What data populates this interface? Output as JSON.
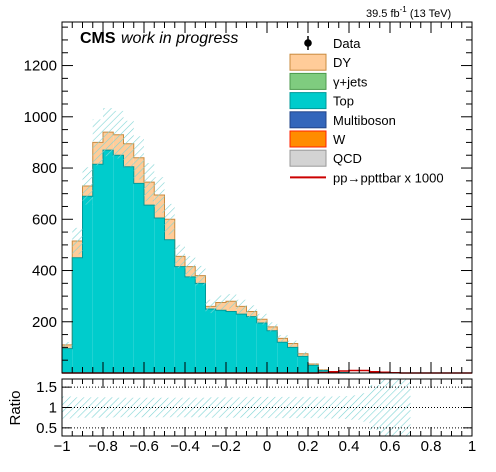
{
  "chart_data": {
    "type": "bar",
    "lumi_label": "39.5 fb",
    "lumi_exponent": "-1",
    "energy_label": "(13 TeV)",
    "experiment_label": "CMS",
    "status_label": "work in progress",
    "x": {
      "edges": [
        -1.0,
        -0.95,
        -0.9,
        -0.85,
        -0.8,
        -0.75,
        -0.7,
        -0.65,
        -0.6,
        -0.55,
        -0.5,
        -0.45,
        -0.4,
        -0.35,
        -0.3,
        -0.25,
        -0.2,
        -0.15,
        -0.1,
        -0.05,
        0.0,
        0.05,
        0.1,
        0.15,
        0.2,
        0.25,
        0.3,
        0.35,
        0.4,
        0.45,
        0.5,
        0.55,
        0.6,
        0.65,
        0.7,
        0.75,
        0.8,
        0.85,
        0.9,
        0.95,
        1.0
      ],
      "xlim": [
        -1,
        1
      ],
      "ticks": [
        -1,
        -0.8,
        -0.6,
        -0.4,
        -0.2,
        0,
        0.2,
        0.4,
        0.6,
        0.8,
        1
      ],
      "tick_labels": [
        "−1",
        "−0.8",
        "−0.6",
        "−0.4",
        "−0.2",
        "0",
        "0.2",
        "0.4",
        "0.6",
        "0.8",
        "1"
      ]
    },
    "main_panel": {
      "ylim": [
        0,
        1370
      ],
      "yticks": [
        200,
        400,
        600,
        800,
        1000,
        1200
      ],
      "ytick_labels": [
        "200",
        "400",
        "600",
        "800",
        "1000",
        "1200"
      ]
    },
    "ratio_panel": {
      "ylabel": "Ratio",
      "ylim": [
        0.3,
        1.7
      ],
      "yticks": [
        0.5,
        1,
        1.5
      ],
      "ytick_labels": [
        "0.5",
        "1",
        "1.5"
      ],
      "reference_lines": [
        0.5,
        1.0,
        1.5
      ],
      "band_half_width": [
        0.27,
        0.25,
        0.25,
        0.25,
        0.25,
        0.24,
        0.24,
        0.24,
        0.24,
        0.24,
        0.24,
        0.24,
        0.24,
        0.24,
        0.25,
        0.25,
        0.25,
        0.25,
        0.26,
        0.26,
        0.26,
        0.26,
        0.26,
        0.26,
        0.26,
        0.27,
        0.27,
        0.28,
        0.3,
        0.35,
        0.55,
        0.75,
        0.75,
        0.75,
        0.0,
        0.0,
        0.0,
        0.0,
        0.0,
        0.0
      ]
    },
    "legend": [
      {
        "label": "Data",
        "kind": "marker",
        "color": "#000000"
      },
      {
        "label": "DY",
        "kind": "box",
        "color": "#ffcc99",
        "edge": "#c98b3f"
      },
      {
        "label": "γ+jets",
        "kind": "box",
        "color": "#7fcc7f",
        "edge": "#4c9a4c"
      },
      {
        "label": "Top",
        "kind": "box",
        "color": "#00cccc",
        "edge": "#009999"
      },
      {
        "label": "Multiboson",
        "kind": "box",
        "color": "#3366bb",
        "edge": "#224488"
      },
      {
        "label": "W",
        "kind": "box",
        "color": "#ff8c00",
        "edge": "#ff2200"
      },
      {
        "label": "QCD",
        "kind": "box",
        "color": "#d3d3d3",
        "edge": "#999999"
      },
      {
        "label": "pp→ppttbar x 1000",
        "kind": "line",
        "color": "#cc0000"
      }
    ],
    "series": [
      {
        "name": "Top",
        "color": "#00cccc",
        "values": [
          95,
          450,
          690,
          815,
          870,
          850,
          805,
          740,
          655,
          605,
          520,
          415,
          375,
          350,
          250,
          245,
          240,
          230,
          220,
          195,
          165,
          120,
          100,
          65,
          30,
          10,
          5,
          2,
          0,
          0,
          0,
          0,
          0,
          0,
          0,
          0,
          0,
          0,
          0,
          0
        ]
      },
      {
        "name": "DY",
        "color": "#ffcc99",
        "values": [
          15,
          65,
          40,
          85,
          70,
          80,
          90,
          100,
          90,
          90,
          80,
          40,
          40,
          30,
          10,
          30,
          40,
          30,
          20,
          15,
          15,
          15,
          15,
          10,
          5,
          2,
          0,
          0,
          0,
          0,
          0,
          0,
          0,
          0,
          0,
          0,
          0,
          0,
          0,
          0
        ]
      },
      {
        "name": "signal",
        "color": "#cc0000",
        "kind": "line",
        "values": [
          0,
          0,
          0,
          0,
          0,
          0,
          0,
          0,
          0,
          0,
          0,
          0,
          0,
          0,
          0,
          0,
          0,
          0,
          0,
          0,
          0,
          0,
          0,
          0,
          0,
          2,
          5,
          8,
          10,
          10,
          5,
          3,
          1,
          0,
          0,
          0,
          0,
          0,
          0,
          0
        ]
      }
    ],
    "uncertainty_band": {
      "relative": 0.1,
      "pattern_color": "#7fd4d4"
    }
  }
}
